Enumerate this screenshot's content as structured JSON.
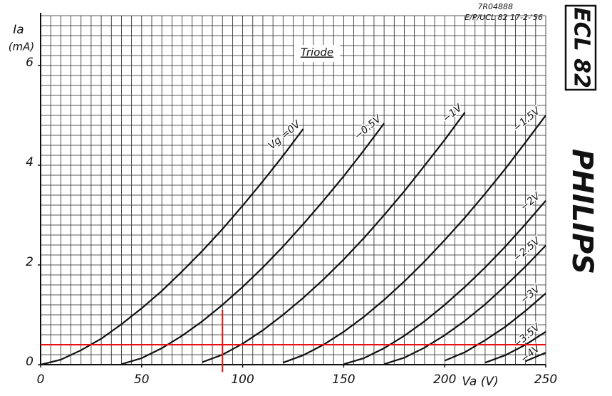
{
  "chart_data": {
    "type": "line",
    "title": "Triode",
    "code": "7R04888",
    "reference": "E/P/UCL 82 17-2-'56",
    "tube": "ECL 82",
    "brand": "PHILIPS",
    "y_label": "Ia",
    "y_unit": "(mA)",
    "x_label": "Va (V)",
    "x": [
      0,
      10,
      20,
      30,
      40,
      50,
      60,
      70,
      80,
      90,
      100,
      110,
      120,
      130,
      140,
      150,
      160,
      170,
      180,
      190,
      200,
      210,
      220,
      230,
      240,
      250
    ],
    "xlim": [
      0,
      250
    ],
    "xticks": [
      0,
      50,
      100,
      150,
      200,
      250
    ],
    "ylim": [
      0,
      7
    ],
    "yticks": [
      0,
      2,
      4,
      6
    ],
    "grid": true,
    "minor_grid": {
      "x": 5,
      "y": 0.2
    },
    "color": "#111111",
    "series": [
      {
        "name": "Vg =0V",
        "values": [
          0,
          0.1,
          0.29,
          0.52,
          0.81,
          1.13,
          1.48,
          1.87,
          2.28,
          2.72,
          3.19,
          3.68,
          4.19,
          4.73,
          null,
          null,
          null,
          null,
          null,
          null,
          null,
          null,
          null,
          null,
          null,
          null
        ]
      },
      {
        "name": "−0.5V",
        "values": [
          null,
          null,
          null,
          null,
          0.01,
          0.13,
          0.33,
          0.58,
          0.87,
          1.2,
          1.56,
          1.95,
          2.37,
          2.82,
          3.29,
          3.78,
          4.3,
          4.84,
          null,
          null,
          null,
          null,
          null,
          null,
          null,
          null
        ]
      },
      {
        "name": "−1V",
        "values": [
          null,
          null,
          null,
          null,
          null,
          null,
          null,
          null,
          0.05,
          0.2,
          0.42,
          0.69,
          1.0,
          1.34,
          1.71,
          2.11,
          2.54,
          3.0,
          3.48,
          3.99,
          4.51,
          5.06,
          null,
          null,
          null,
          null
        ]
      },
      {
        "name": "−1.5V",
        "values": [
          null,
          null,
          null,
          null,
          null,
          null,
          null,
          null,
          null,
          null,
          null,
          null,
          0.04,
          0.19,
          0.4,
          0.66,
          0.96,
          1.3,
          1.67,
          2.07,
          2.5,
          2.95,
          3.43,
          3.93,
          4.46,
          5.0
        ]
      },
      {
        "name": "−2V",
        "values": [
          null,
          null,
          null,
          null,
          null,
          null,
          null,
          null,
          null,
          null,
          null,
          null,
          null,
          null,
          null,
          0.01,
          0.13,
          0.33,
          0.58,
          0.87,
          1.2,
          1.56,
          1.95,
          2.37,
          2.82,
          3.29
        ]
      },
      {
        "name": "−2.5V",
        "values": [
          null,
          null,
          null,
          null,
          null,
          null,
          null,
          null,
          null,
          null,
          null,
          null,
          null,
          null,
          null,
          null,
          null,
          0.01,
          0.14,
          0.34,
          0.59,
          0.88,
          1.21,
          1.58,
          1.97,
          2.39
        ]
      },
      {
        "name": "−3V",
        "values": [
          null,
          null,
          null,
          null,
          null,
          null,
          null,
          null,
          null,
          null,
          null,
          null,
          null,
          null,
          null,
          null,
          null,
          null,
          null,
          null,
          0.08,
          0.25,
          0.49,
          0.76,
          1.08,
          1.43
        ]
      },
      {
        "name": "−3.5V",
        "values": [
          null,
          null,
          null,
          null,
          null,
          null,
          null,
          null,
          null,
          null,
          null,
          null,
          null,
          null,
          null,
          null,
          null,
          null,
          null,
          null,
          null,
          null,
          0.04,
          0.19,
          0.4,
          0.66
        ]
      },
      {
        "name": "−4V",
        "values": [
          null,
          null,
          null,
          null,
          null,
          null,
          null,
          null,
          null,
          null,
          null,
          null,
          null,
          null,
          null,
          null,
          null,
          null,
          null,
          null,
          null,
          null,
          null,
          null,
          0.07,
          0.24
        ]
      }
    ],
    "red_lines": {
      "color": "#e81010",
      "y": 0.4,
      "x": 90,
      "x_line_ylim": [
        -0.15,
        1.1
      ]
    }
  }
}
